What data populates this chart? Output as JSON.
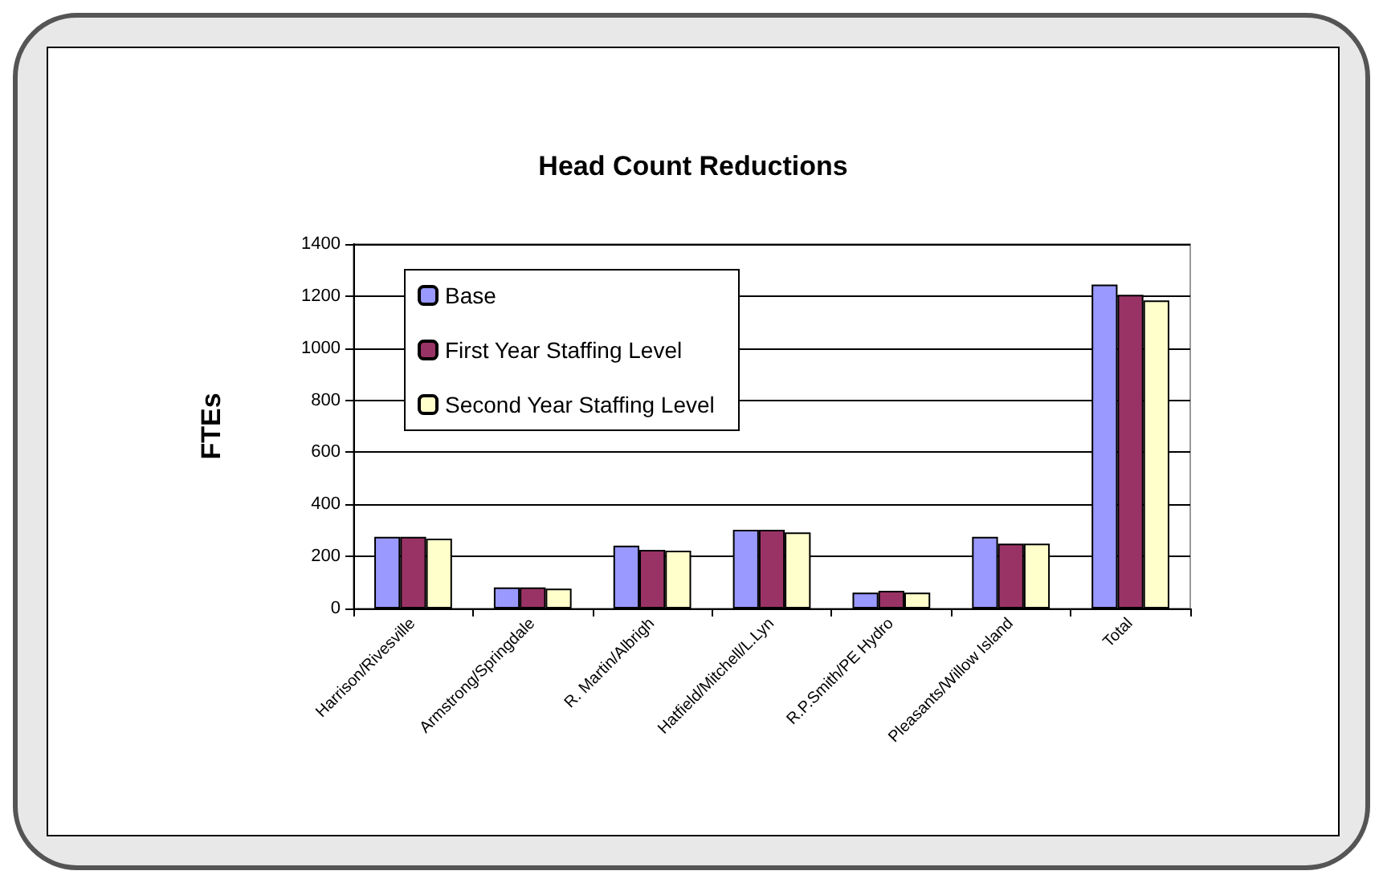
{
  "chart_data": {
    "type": "bar",
    "title": "Head Count Reductions",
    "ylabel": "FTEs",
    "categories": [
      "Harrison/Rivesville",
      "Armstrong/Springdale",
      "R. Martin/Albrigh",
      "Hatfield/Mitchell/L.Lyn",
      "R.P.Smith/PE Hydro",
      "Pleasants/Willow Island",
      "Total"
    ],
    "series": [
      {
        "name": "Base",
        "color": "#9999ff",
        "values": [
          275,
          81,
          241,
          302,
          61,
          275,
          1244
        ]
      },
      {
        "name": "First Year Staffing Level",
        "color": "#993366",
        "values": [
          275,
          81,
          225,
          302,
          68,
          249,
          1205
        ]
      },
      {
        "name": "Second Year Staffing Level",
        "color": "#ffffcc",
        "values": [
          268,
          76,
          222,
          292,
          61,
          249,
          1183
        ]
      }
    ],
    "ylim": [
      0,
      1400
    ],
    "yticks": [
      0,
      200,
      400,
      600,
      800,
      1000,
      1200,
      1400
    ],
    "grid": "y",
    "legend": "top left"
  }
}
